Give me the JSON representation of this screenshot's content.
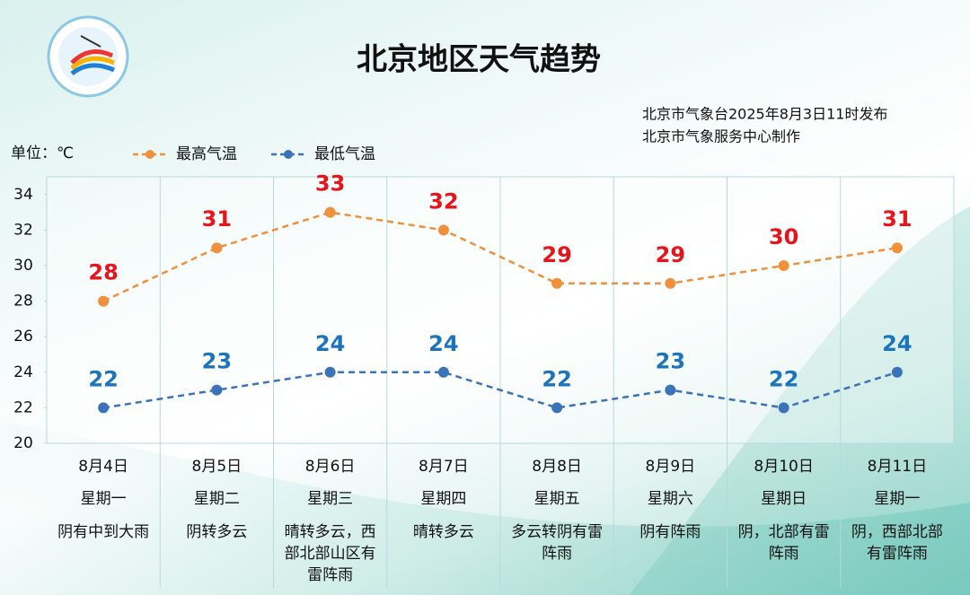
{
  "chart_data": {
    "type": "line",
    "title": "北京地区天气趋势",
    "credits": [
      "北京市气象台2025年8月3日11时发布",
      "北京市气象服务中心制作"
    ],
    "unit_label": "单位：℃",
    "categories": [
      "8月4日",
      "8月5日",
      "8月6日",
      "8月7日",
      "8月8日",
      "8月9日",
      "8月10日",
      "8月11日"
    ],
    "weekdays": [
      "星期一",
      "星期二",
      "星期三",
      "星期四",
      "星期五",
      "星期六",
      "星期日",
      "星期一"
    ],
    "weather": [
      "阴有中到大雨",
      "阴转多云",
      "晴转多云，西部北部山区有雷阵雨",
      "晴转多云",
      "多云转阴有雷阵雨",
      "阴有阵雨",
      "阴，北部有雷阵雨",
      "阴，西部北部有雷阵雨"
    ],
    "series": [
      {
        "name": "最高气温",
        "color": "#f0903a",
        "label_color": "#e8141b",
        "values": [
          28,
          31,
          33,
          32,
          29,
          29,
          30,
          31
        ]
      },
      {
        "name": "最低气温",
        "color": "#3b73b9",
        "label_color": "#1b74bd",
        "values": [
          22,
          23,
          24,
          24,
          22,
          23,
          22,
          24
        ]
      }
    ],
    "ylim": [
      20,
      35
    ],
    "yticks": [
      20,
      22,
      24,
      26,
      28,
      30,
      32,
      34
    ],
    "grid": false,
    "legend": "top-left"
  }
}
